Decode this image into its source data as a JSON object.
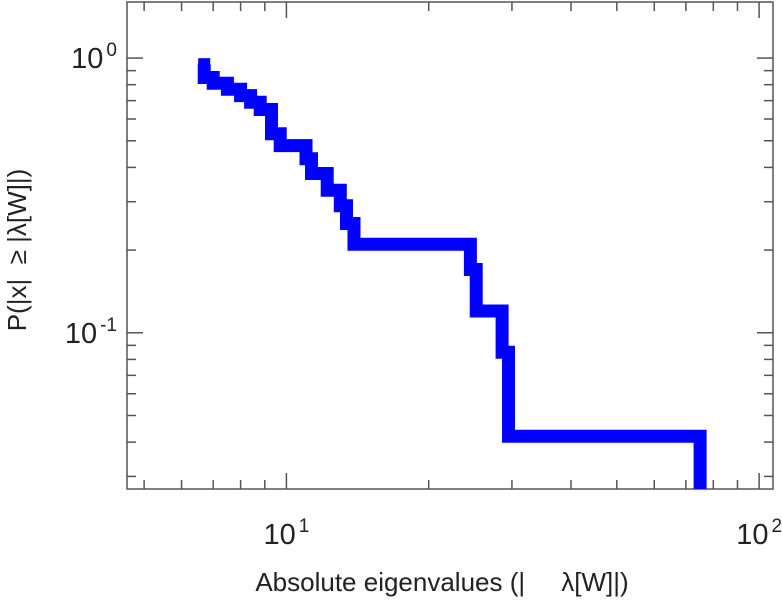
{
  "chart_data": {
    "type": "line",
    "subtype": "step-ccdf",
    "title": "",
    "xlabel": "Absolute eigenvalues (|     λ[W]|)",
    "ylabel": "P(|x|  ≥ |λ[W]|)",
    "xscale": "log",
    "yscale": "log",
    "xlim": [
      4.6,
      107
    ],
    "ylim": [
      0.027,
      1.6
    ],
    "grid": false,
    "legend": "none",
    "x_ticks": [
      {
        "value": 10,
        "base": "10",
        "exp": "1"
      },
      {
        "value": 100,
        "base": "10",
        "exp": "2"
      }
    ],
    "y_ticks": [
      {
        "value": 0.1,
        "base": "10",
        "exp": "-1"
      },
      {
        "value": 1,
        "base": "10",
        "exp": "0"
      }
    ],
    "series": [
      {
        "color": "#0000ff",
        "x": [
          6.7,
          7.0,
          7.5,
          8.0,
          8.4,
          8.8,
          9.3,
          9.7,
          11.0,
          11.3,
          11.6,
          12.2,
          13.0,
          13.4,
          13.9,
          14.7,
          24.5,
          25.2,
          25.7,
          28.6,
          29.5,
          30.3,
          75.0
        ],
        "y": [
          0.95,
          0.85,
          0.81,
          0.77,
          0.73,
          0.69,
          0.65,
          0.53,
          0.48,
          0.43,
          0.38,
          0.38,
          0.33,
          0.29,
          0.25,
          0.21,
          0.21,
          0.17,
          0.12,
          0.12,
          0.085,
          0.042,
          0.042
        ]
      }
    ]
  }
}
